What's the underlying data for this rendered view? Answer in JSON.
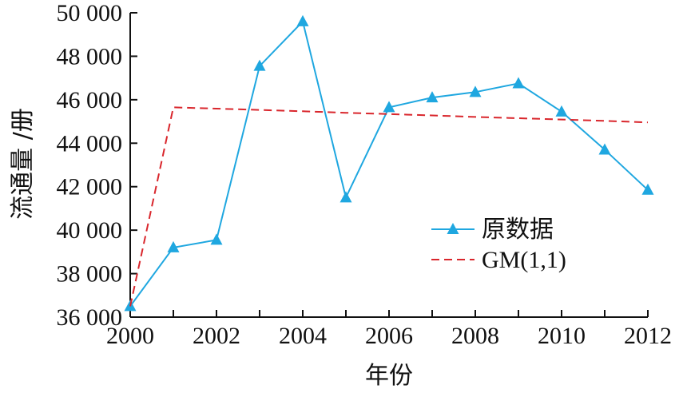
{
  "chart_data": {
    "type": "line",
    "xlabel": "年份",
    "ylabel": "流通量 /册",
    "xlim": [
      2000,
      2012
    ],
    "ylim": [
      36000,
      50000
    ],
    "x_ticks": [
      2000,
      2002,
      2004,
      2006,
      2008,
      2010,
      2012
    ],
    "y_ticks": [
      36000,
      38000,
      40000,
      42000,
      44000,
      46000,
      48000,
      50000
    ],
    "x_tick_labels": [
      "2000",
      "2002",
      "2004",
      "2006",
      "2008",
      "2010",
      "2012"
    ],
    "y_tick_labels": [
      "36 000",
      "38 000",
      "40 000",
      "42 000",
      "44 000",
      "46 000",
      "48 000",
      "50 000"
    ],
    "legend_position": "right",
    "grid": false,
    "series": [
      {
        "name": "原数据",
        "color": "#1fa7e0",
        "style": "solid",
        "marker": "triangle",
        "x": [
          2000,
          2001,
          2002,
          2003,
          2004,
          2005,
          2006,
          2007,
          2008,
          2009,
          2010,
          2011,
          2012
        ],
        "y": [
          36500,
          39200,
          39550,
          47550,
          49600,
          41500,
          45650,
          46100,
          46350,
          46750,
          45450,
          43700,
          41850
        ]
      },
      {
        "name": "GM(1,1)",
        "color": "#d9262c",
        "style": "dashed",
        "marker": "none",
        "x": [
          2000,
          2001,
          2002,
          2003,
          2004,
          2005,
          2006,
          2007,
          2008,
          2009,
          2010,
          2011,
          2012
        ],
        "y": [
          36500,
          45650,
          45590,
          45530,
          45470,
          45400,
          45340,
          45280,
          45210,
          45150,
          45090,
          45030,
          44960
        ]
      }
    ]
  }
}
